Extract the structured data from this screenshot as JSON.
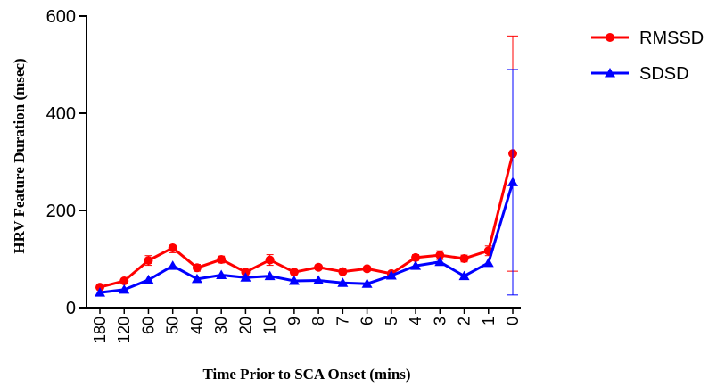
{
  "chart_data": {
    "type": "line",
    "xlabel": "Time Prior to SCA Onset (mins)",
    "ylabel": "HRV Feature Duration  (msec)",
    "ylim": [
      0,
      600
    ],
    "yticks": [
      "0",
      "200",
      "400",
      "600"
    ],
    "categories": [
      "180",
      "120",
      "60",
      "50",
      "40",
      "30",
      "20",
      "10",
      "9",
      "8",
      "7",
      "6",
      "5",
      "4",
      "3",
      "2",
      "1",
      "0"
    ],
    "legend_position": "top-right",
    "grid": false,
    "series": [
      {
        "name": "RMSSD",
        "color": "#ff0000",
        "marker": "circle",
        "values": [
          42,
          55,
          97,
          123,
          82,
          99,
          73,
          98,
          73,
          83,
          74,
          80,
          70,
          103,
          108,
          101,
          117,
          317
        ],
        "error": [
          0,
          0,
          10,
          10,
          7,
          7,
          5,
          11,
          5,
          5,
          5,
          5,
          4,
          6,
          9,
          7,
          10,
          242
        ]
      },
      {
        "name": "SDSD",
        "color": "#0000ff",
        "marker": "triangle",
        "values": [
          31,
          37,
          57,
          86,
          59,
          67,
          62,
          65,
          55,
          56,
          51,
          49,
          66,
          86,
          94,
          65,
          92,
          258
        ],
        "error": [
          0,
          0,
          0,
          0,
          0,
          0,
          0,
          0,
          0,
          0,
          0,
          0,
          0,
          0,
          0,
          0,
          0,
          232
        ]
      }
    ]
  }
}
